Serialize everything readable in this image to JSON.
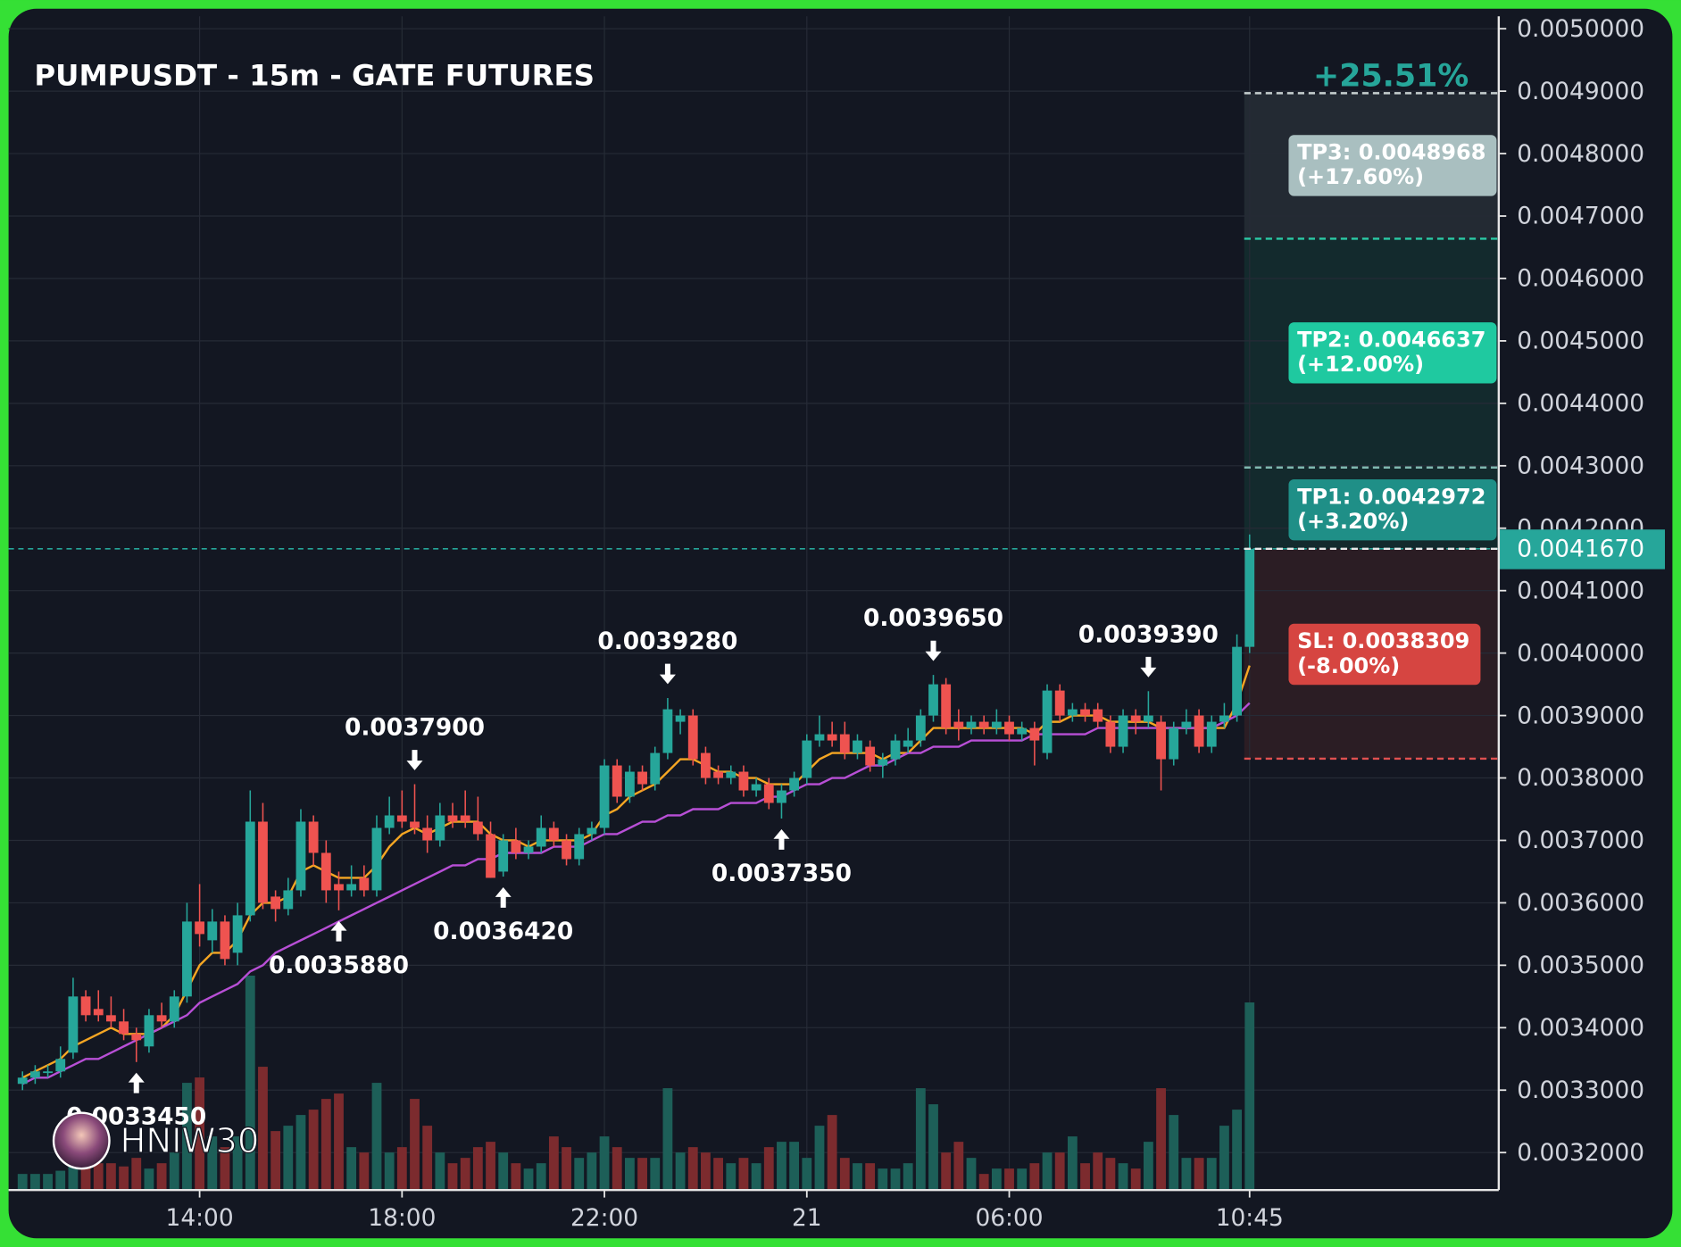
{
  "chart_data": {
    "type": "candlestick",
    "title": "PUMPUSDT - 15m - GATE FUTURES",
    "watermark": "HNIW30",
    "ylim": [
      0.00314,
      0.00502
    ],
    "yticks": [
      {
        "value": 0.0032,
        "label": "0.0032000"
      },
      {
        "value": 0.0033,
        "label": "0.0033000"
      },
      {
        "value": 0.0034,
        "label": "0.0034000"
      },
      {
        "value": 0.0035,
        "label": "0.0035000"
      },
      {
        "value": 0.0036,
        "label": "0.0036000"
      },
      {
        "value": 0.0037,
        "label": "0.0037000"
      },
      {
        "value": 0.0038,
        "label": "0.0038000"
      },
      {
        "value": 0.0039,
        "label": "0.0039000"
      },
      {
        "value": 0.004,
        "label": "0.0040000"
      },
      {
        "value": 0.0041,
        "label": "0.0041000"
      },
      {
        "value": 0.0042,
        "label": "0.0042000"
      },
      {
        "value": 0.0043,
        "label": "0.0043000"
      },
      {
        "value": 0.0044,
        "label": "0.0044000"
      },
      {
        "value": 0.0045,
        "label": "0.0045000"
      },
      {
        "value": 0.0046,
        "label": "0.0046000"
      },
      {
        "value": 0.0047,
        "label": "0.0047000"
      },
      {
        "value": 0.0048,
        "label": "0.0048000"
      },
      {
        "value": 0.0049,
        "label": "0.0049000"
      },
      {
        "value": 0.005,
        "label": "0.0050000"
      }
    ],
    "xticks": [
      {
        "value": 14,
        "label": "14:00"
      },
      {
        "value": 30,
        "label": "18:00"
      },
      {
        "value": 46,
        "label": "22:00"
      },
      {
        "value": 62,
        "label": "21"
      },
      {
        "value": 78,
        "label": "06:00"
      },
      {
        "value": 97,
        "label": "10:45"
      }
    ],
    "grid": true,
    "up_color": "#26a69a",
    "down_color": "#ef5350",
    "up_volume_color": "#1d5f58",
    "down_volume_color": "#7c2b2e",
    "vlim": [
      0,
      300
    ],
    "candles": [
      [
        0.00331,
        0.00333,
        0.0033,
        0.00332
      ],
      [
        0.00332,
        0.00334,
        0.00331,
        0.00333
      ],
      [
        0.00333,
        0.00334,
        0.00332,
        0.00333
      ],
      [
        0.00333,
        0.00337,
        0.00332,
        0.00335
      ],
      [
        0.00336,
        0.00348,
        0.00335,
        0.00345
      ],
      [
        0.00345,
        0.00346,
        0.00341,
        0.00342
      ],
      [
        0.00343,
        0.00346,
        0.00341,
        0.00342
      ],
      [
        0.00342,
        0.00345,
        0.0034,
        0.00341
      ],
      [
        0.00341,
        0.00343,
        0.00338,
        0.00339
      ],
      [
        0.00339,
        0.0034,
        0.003345,
        0.00338
      ],
      [
        0.00337,
        0.00343,
        0.00336,
        0.00342
      ],
      [
        0.00342,
        0.00344,
        0.0034,
        0.00341
      ],
      [
        0.00341,
        0.00346,
        0.0034,
        0.00345
      ],
      [
        0.00345,
        0.0036,
        0.00344,
        0.00357
      ],
      [
        0.00357,
        0.00363,
        0.00353,
        0.00355
      ],
      [
        0.00354,
        0.00359,
        0.00352,
        0.00357
      ],
      [
        0.00357,
        0.00358,
        0.0035,
        0.00351
      ],
      [
        0.00352,
        0.0036,
        0.0035,
        0.00358
      ],
      [
        0.00358,
        0.00378,
        0.00357,
        0.00373
      ],
      [
        0.00373,
        0.00376,
        0.00359,
        0.0036
      ],
      [
        0.00361,
        0.00362,
        0.00357,
        0.00359
      ],
      [
        0.00359,
        0.00364,
        0.00358,
        0.00362
      ],
      [
        0.00362,
        0.00375,
        0.00361,
        0.00373
      ],
      [
        0.00373,
        0.00374,
        0.00366,
        0.00368
      ],
      [
        0.00368,
        0.0037,
        0.0036,
        0.00362
      ],
      [
        0.00363,
        0.00365,
        0.003588,
        0.00362
      ],
      [
        0.00362,
        0.00366,
        0.00361,
        0.00363
      ],
      [
        0.00364,
        0.00366,
        0.00361,
        0.00362
      ],
      [
        0.00362,
        0.00374,
        0.00361,
        0.00372
      ],
      [
        0.00372,
        0.00377,
        0.00371,
        0.00374
      ],
      [
        0.00374,
        0.00378,
        0.00372,
        0.00373
      ],
      [
        0.00373,
        0.00379,
        0.00371,
        0.00372
      ],
      [
        0.00372,
        0.00374,
        0.00368,
        0.0037
      ],
      [
        0.0037,
        0.00376,
        0.00369,
        0.00374
      ],
      [
        0.00374,
        0.00376,
        0.00372,
        0.00373
      ],
      [
        0.00374,
        0.00378,
        0.00372,
        0.00373
      ],
      [
        0.00373,
        0.00377,
        0.0037,
        0.00371
      ],
      [
        0.00371,
        0.00373,
        0.00364,
        0.00364
      ],
      [
        0.00365,
        0.00371,
        0.003642,
        0.0037
      ],
      [
        0.0037,
        0.00372,
        0.00367,
        0.00368
      ],
      [
        0.00368,
        0.0037,
        0.00367,
        0.00369
      ],
      [
        0.00369,
        0.00374,
        0.00368,
        0.00372
      ],
      [
        0.00372,
        0.00373,
        0.00369,
        0.0037
      ],
      [
        0.0037,
        0.00371,
        0.00366,
        0.00367
      ],
      [
        0.00367,
        0.00372,
        0.00366,
        0.00371
      ],
      [
        0.00371,
        0.00373,
        0.0037,
        0.00372
      ],
      [
        0.00372,
        0.00383,
        0.00371,
        0.00382
      ],
      [
        0.00382,
        0.00383,
        0.00376,
        0.00377
      ],
      [
        0.00377,
        0.00382,
        0.00376,
        0.00381
      ],
      [
        0.00381,
        0.00382,
        0.00378,
        0.00379
      ],
      [
        0.00379,
        0.00385,
        0.00378,
        0.00384
      ],
      [
        0.00384,
        0.003928,
        0.00383,
        0.00391
      ],
      [
        0.00389,
        0.00391,
        0.00387,
        0.0039
      ],
      [
        0.0039,
        0.00391,
        0.00382,
        0.00383
      ],
      [
        0.00384,
        0.00385,
        0.00379,
        0.0038
      ],
      [
        0.00381,
        0.00382,
        0.00379,
        0.0038
      ],
      [
        0.0038,
        0.00382,
        0.00379,
        0.00381
      ],
      [
        0.00381,
        0.00382,
        0.00377,
        0.00378
      ],
      [
        0.00378,
        0.0038,
        0.00377,
        0.00379
      ],
      [
        0.00379,
        0.0038,
        0.00375,
        0.00376
      ],
      [
        0.00376,
        0.00379,
        0.003735,
        0.00378
      ],
      [
        0.00378,
        0.00381,
        0.00377,
        0.0038
      ],
      [
        0.0038,
        0.00387,
        0.00379,
        0.00386
      ],
      [
        0.00386,
        0.0039,
        0.00385,
        0.00387
      ],
      [
        0.00387,
        0.00389,
        0.00385,
        0.00386
      ],
      [
        0.00387,
        0.00389,
        0.00383,
        0.00384
      ],
      [
        0.00384,
        0.00387,
        0.00383,
        0.00386
      ],
      [
        0.00385,
        0.00386,
        0.00381,
        0.00382
      ],
      [
        0.00382,
        0.00384,
        0.0038,
        0.00383
      ],
      [
        0.00383,
        0.00387,
        0.00382,
        0.00386
      ],
      [
        0.00385,
        0.00388,
        0.00384,
        0.00386
      ],
      [
        0.00386,
        0.00391,
        0.00385,
        0.0039
      ],
      [
        0.0039,
        0.003965,
        0.00389,
        0.00395
      ],
      [
        0.00395,
        0.00396,
        0.00387,
        0.00388
      ],
      [
        0.00389,
        0.00391,
        0.00386,
        0.00388
      ],
      [
        0.00388,
        0.0039,
        0.00387,
        0.00389
      ],
      [
        0.00389,
        0.0039,
        0.00387,
        0.00388
      ],
      [
        0.00388,
        0.00391,
        0.00387,
        0.00389
      ],
      [
        0.00389,
        0.0039,
        0.00386,
        0.00387
      ],
      [
        0.00387,
        0.00389,
        0.00386,
        0.00388
      ],
      [
        0.00388,
        0.00389,
        0.00382,
        0.00386
      ],
      [
        0.00384,
        0.00395,
        0.00383,
        0.00394
      ],
      [
        0.00394,
        0.00395,
        0.00389,
        0.0039
      ],
      [
        0.0039,
        0.00392,
        0.00389,
        0.00391
      ],
      [
        0.00391,
        0.00392,
        0.00389,
        0.0039
      ],
      [
        0.00391,
        0.00392,
        0.00388,
        0.00389
      ],
      [
        0.00389,
        0.0039,
        0.00384,
        0.00385
      ],
      [
        0.00385,
        0.00391,
        0.00384,
        0.0039
      ],
      [
        0.0039,
        0.00391,
        0.00387,
        0.00389
      ],
      [
        0.00389,
        0.003939,
        0.00388,
        0.0039
      ],
      [
        0.00389,
        0.0039,
        0.00378,
        0.00383
      ],
      [
        0.00383,
        0.00389,
        0.00382,
        0.00388
      ],
      [
        0.00388,
        0.00391,
        0.00387,
        0.00389
      ],
      [
        0.0039,
        0.00391,
        0.00384,
        0.00385
      ],
      [
        0.00385,
        0.0039,
        0.00384,
        0.00389
      ],
      [
        0.00389,
        0.00392,
        0.00388,
        0.0039
      ],
      [
        0.0039,
        0.00403,
        0.00389,
        0.00401
      ],
      [
        0.00401,
        0.00419,
        0.004,
        0.004167
      ]
    ],
    "volumes": [
      15,
      15,
      15,
      18,
      65,
      35,
      25,
      25,
      22,
      30,
      20,
      25,
      35,
      100,
      105,
      50,
      40,
      50,
      200,
      115,
      55,
      60,
      70,
      75,
      85,
      90,
      40,
      35,
      100,
      35,
      40,
      85,
      60,
      35,
      25,
      30,
      40,
      45,
      35,
      25,
      20,
      25,
      50,
      40,
      30,
      35,
      50,
      40,
      30,
      30,
      30,
      95,
      35,
      40,
      35,
      30,
      25,
      30,
      25,
      40,
      45,
      45,
      30,
      60,
      70,
      30,
      25,
      25,
      20,
      20,
      25,
      95,
      80,
      35,
      45,
      30,
      15,
      20,
      20,
      20,
      25,
      35,
      35,
      50,
      25,
      35,
      30,
      25,
      20,
      45,
      95,
      70,
      30,
      30,
      30,
      60,
      75,
      175
    ],
    "series": [
      {
        "color": "#f5a623",
        "values": [
          0.00332,
          0.00333,
          0.00334,
          0.00335,
          0.00337,
          0.00338,
          0.00339,
          0.0034,
          0.00339,
          0.00339,
          0.00339,
          0.0034,
          0.00342,
          0.00346,
          0.0035,
          0.00352,
          0.00352,
          0.00354,
          0.00358,
          0.0036,
          0.0036,
          0.00361,
          0.00365,
          0.00366,
          0.00365,
          0.00364,
          0.00364,
          0.00364,
          0.00366,
          0.00369,
          0.00371,
          0.00372,
          0.00371,
          0.00372,
          0.00373,
          0.00373,
          0.00373,
          0.00371,
          0.0037,
          0.0037,
          0.00369,
          0.0037,
          0.0037,
          0.0037,
          0.0037,
          0.00371,
          0.00374,
          0.00375,
          0.00377,
          0.00378,
          0.00379,
          0.00381,
          0.00383,
          0.00383,
          0.00382,
          0.00381,
          0.00381,
          0.0038,
          0.0038,
          0.00379,
          0.00379,
          0.00379,
          0.00381,
          0.00383,
          0.00384,
          0.00384,
          0.00384,
          0.00384,
          0.00383,
          0.00384,
          0.00384,
          0.00386,
          0.00388,
          0.00388,
          0.00388,
          0.00388,
          0.00388,
          0.00388,
          0.00388,
          0.00388,
          0.00387,
          0.00389,
          0.00389,
          0.0039,
          0.0039,
          0.0039,
          0.00389,
          0.00389,
          0.00389,
          0.00389,
          0.00388,
          0.00388,
          0.00388,
          0.00388,
          0.00388,
          0.00388,
          0.00392,
          0.00398
        ]
      },
      {
        "color": "#b84fd6",
        "values": [
          0.00331,
          0.00332,
          0.00332,
          0.00333,
          0.00334,
          0.00335,
          0.00335,
          0.00336,
          0.00337,
          0.00338,
          0.00339,
          0.0034,
          0.00341,
          0.00342,
          0.00344,
          0.00345,
          0.00346,
          0.00347,
          0.00349,
          0.0035,
          0.00352,
          0.00353,
          0.00354,
          0.00355,
          0.00356,
          0.00357,
          0.00358,
          0.00359,
          0.0036,
          0.00361,
          0.00362,
          0.00363,
          0.00364,
          0.00365,
          0.00366,
          0.00366,
          0.00367,
          0.00367,
          0.00368,
          0.00368,
          0.00368,
          0.00368,
          0.00369,
          0.00369,
          0.00369,
          0.0037,
          0.00371,
          0.00371,
          0.00372,
          0.00373,
          0.00373,
          0.00374,
          0.00374,
          0.00375,
          0.00375,
          0.00375,
          0.00376,
          0.00376,
          0.00376,
          0.00377,
          0.00377,
          0.00378,
          0.00379,
          0.00379,
          0.0038,
          0.0038,
          0.00381,
          0.00382,
          0.00382,
          0.00383,
          0.00384,
          0.00384,
          0.00385,
          0.00385,
          0.00385,
          0.00386,
          0.00386,
          0.00386,
          0.00386,
          0.00386,
          0.00387,
          0.00387,
          0.00387,
          0.00387,
          0.00387,
          0.00388,
          0.00388,
          0.00388,
          0.00388,
          0.00388,
          0.00388,
          0.00388,
          0.00388,
          0.00388,
          0.00388,
          0.00389,
          0.0039,
          0.00392
        ]
      }
    ],
    "annotations": [
      {
        "index": 9,
        "value": 0.003345,
        "label": "0.0033450",
        "direction": "up"
      },
      {
        "index": 25,
        "value": 0.003588,
        "label": "0.0035880",
        "direction": "up"
      },
      {
        "index": 31,
        "value": 0.00379,
        "label": "0.0037900",
        "direction": "down"
      },
      {
        "index": 38,
        "value": 0.003642,
        "label": "0.0036420",
        "direction": "up"
      },
      {
        "index": 51,
        "value": 0.003928,
        "label": "0.0039280",
        "direction": "down"
      },
      {
        "index": 60,
        "value": 0.003735,
        "label": "0.0037350",
        "direction": "up"
      },
      {
        "index": 72,
        "value": 0.003965,
        "label": "0.0039650",
        "direction": "down"
      },
      {
        "index": 89,
        "value": 0.003939,
        "label": "0.0039390",
        "direction": "down"
      }
    ],
    "last_price": {
      "value": 0.004167,
      "label": "0.0041670",
      "color": "#26a69a"
    },
    "position": {
      "change_label": "+25.51%",
      "take_profits": [
        {
          "value": 0.0048968,
          "text": "TP3: 0.0048968",
          "pct": "(+17.60%)",
          "color": "#a9bfc0",
          "line_color": "#c7d0d0"
        },
        {
          "value": 0.0046637,
          "text": "TP2: 0.0046637",
          "pct": "(+12.00%)",
          "color": "#1fc9a0",
          "line_color": "#2bc9a6"
        },
        {
          "value": 0.0042972,
          "text": "TP1: 0.0042972",
          "pct": "(+3.20%)",
          "color": "#1f8f87",
          "line_color": "#7fb8b0"
        }
      ],
      "stop_loss": {
        "value": 0.0038309,
        "text": "SL: 0.0038309",
        "pct": "(-8.00%)",
        "color": "#d64541",
        "line_color": "#e05050"
      }
    }
  }
}
